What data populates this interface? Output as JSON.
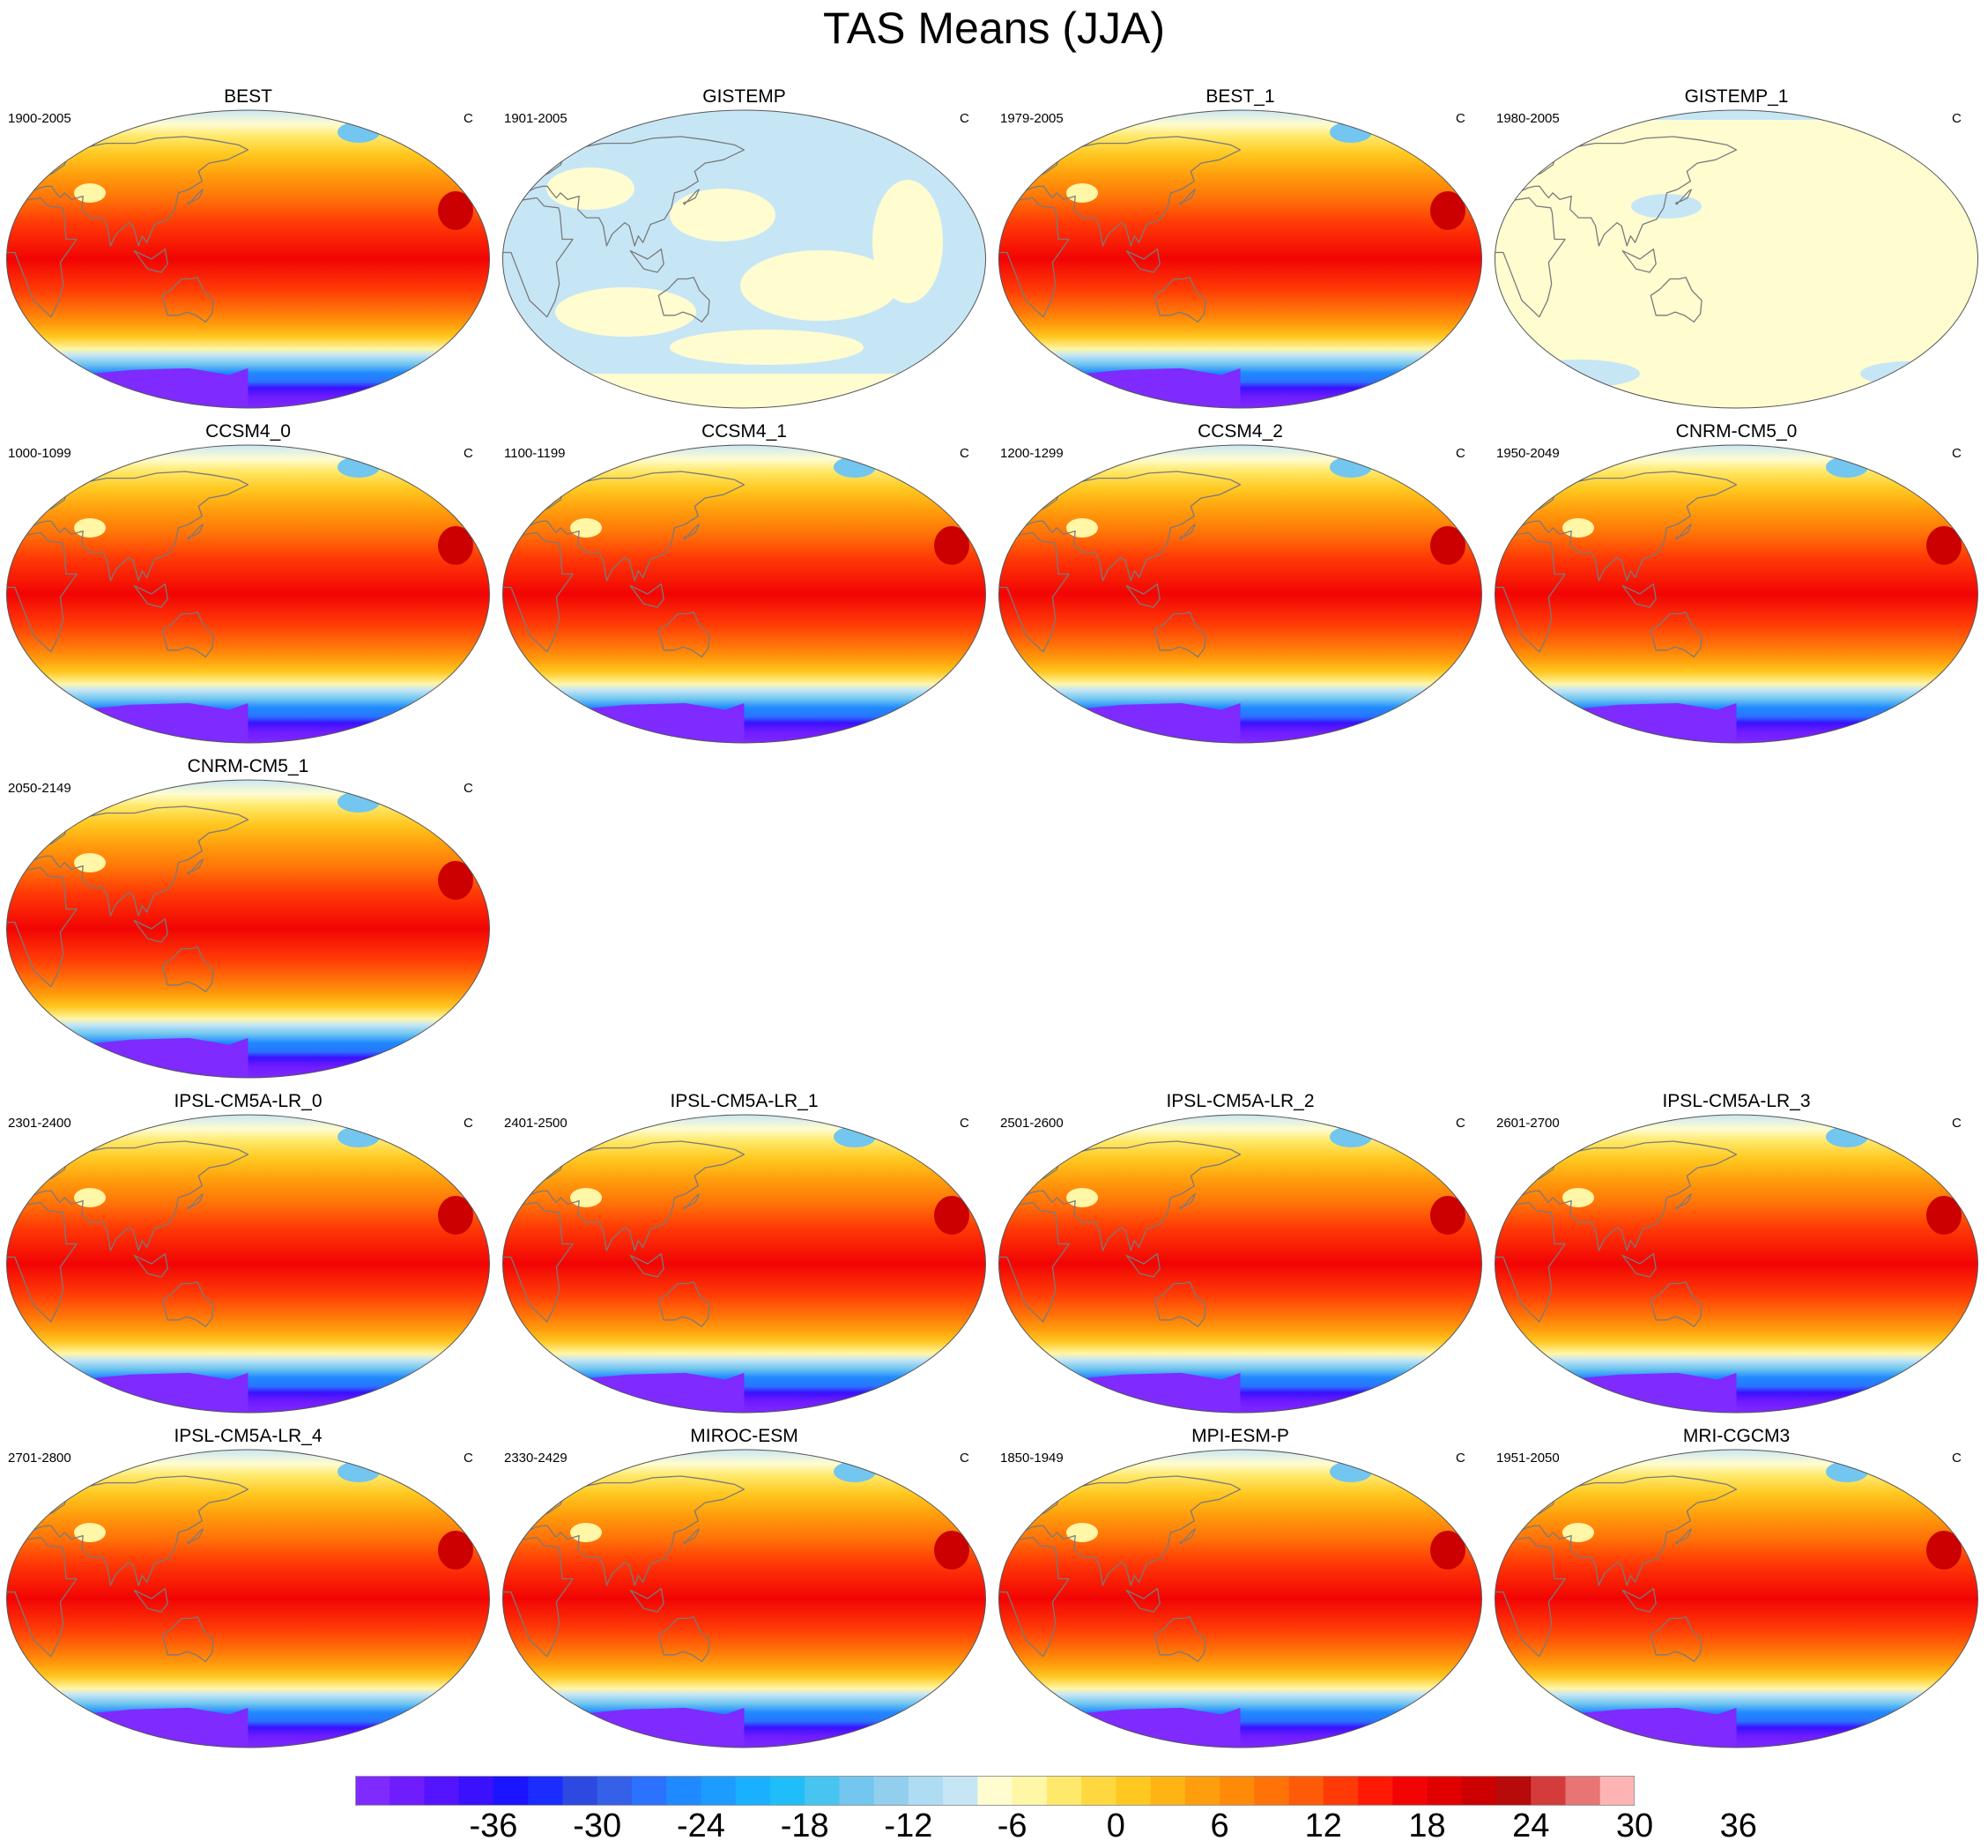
{
  "title": "TAS Means (JJA)",
  "colors": {
    "coast": "#7a7a7a",
    "border": "#555555",
    "scale": [
      "#7f2aff",
      "#6f1cff",
      "#5414ff",
      "#3a10ff",
      "#1a14ff",
      "#1a2cff",
      "#2d4ae0",
      "#3560e8",
      "#2a72ff",
      "#1f8aff",
      "#1c9cff",
      "#18b0ff",
      "#20bef8",
      "#48c4f0",
      "#72c6ef",
      "#92ceee",
      "#aedcf2",
      "#c6e6f6",
      "#fffcd0",
      "#fff6a6",
      "#ffe96a",
      "#ffd840",
      "#ffc820",
      "#ffb414",
      "#ff9e0c",
      "#ff8a08",
      "#ff7208",
      "#ff5a08",
      "#ff3a06",
      "#ff1a06",
      "#f20404",
      "#e00000",
      "#cc0000",
      "#b70a0a",
      "#d43c3c",
      "#e87474",
      "#ffb4b4"
    ]
  },
  "colorbar": {
    "labels": [
      "-36",
      "-30",
      "-24",
      "-18",
      "-12",
      "-6",
      "0",
      "6",
      "12",
      "18",
      "24",
      "30",
      "36"
    ]
  },
  "panels": [
    {
      "title": "BEST",
      "years": "1900-2005",
      "unit": "C",
      "style": "obs"
    },
    {
      "title": "GISTEMP",
      "years": "1901-2005",
      "unit": "C",
      "style": "gis"
    },
    {
      "title": "BEST_1",
      "years": "1979-2005",
      "unit": "C",
      "style": "obs"
    },
    {
      "title": "GISTEMP_1",
      "years": "1980-2005",
      "unit": "C",
      "style": "gis1"
    },
    {
      "title": "CCSM4_0",
      "years": "1000-1099",
      "unit": "C",
      "style": "model"
    },
    {
      "title": "CCSM4_1",
      "years": "1100-1199",
      "unit": "C",
      "style": "model"
    },
    {
      "title": "CCSM4_2",
      "years": "1200-1299",
      "unit": "C",
      "style": "model"
    },
    {
      "title": "CNRM-CM5_0",
      "years": "1950-2049",
      "unit": "C",
      "style": "model"
    },
    {
      "title": "CNRM-CM5_1",
      "years": "2050-2149",
      "unit": "C",
      "style": "model"
    },
    {
      "title": "IPSL-CM5A-LR_0",
      "years": "2301-2400",
      "unit": "C",
      "style": "model"
    },
    {
      "title": "IPSL-CM5A-LR_1",
      "years": "2401-2500",
      "unit": "C",
      "style": "model"
    },
    {
      "title": "IPSL-CM5A-LR_2",
      "years": "2501-2600",
      "unit": "C",
      "style": "model"
    },
    {
      "title": "IPSL-CM5A-LR_3",
      "years": "2601-2700",
      "unit": "C",
      "style": "model"
    },
    {
      "title": "IPSL-CM5A-LR_4",
      "years": "2701-2800",
      "unit": "C",
      "style": "model"
    },
    {
      "title": "MIROC-ESM",
      "years": "2330-2429",
      "unit": "C",
      "style": "model"
    },
    {
      "title": "MPI-ESM-P",
      "years": "1850-1949",
      "unit": "C",
      "style": "model"
    },
    {
      "title": "MRI-CGCM3",
      "years": "1951-2050",
      "unit": "C",
      "style": "model"
    }
  ]
}
